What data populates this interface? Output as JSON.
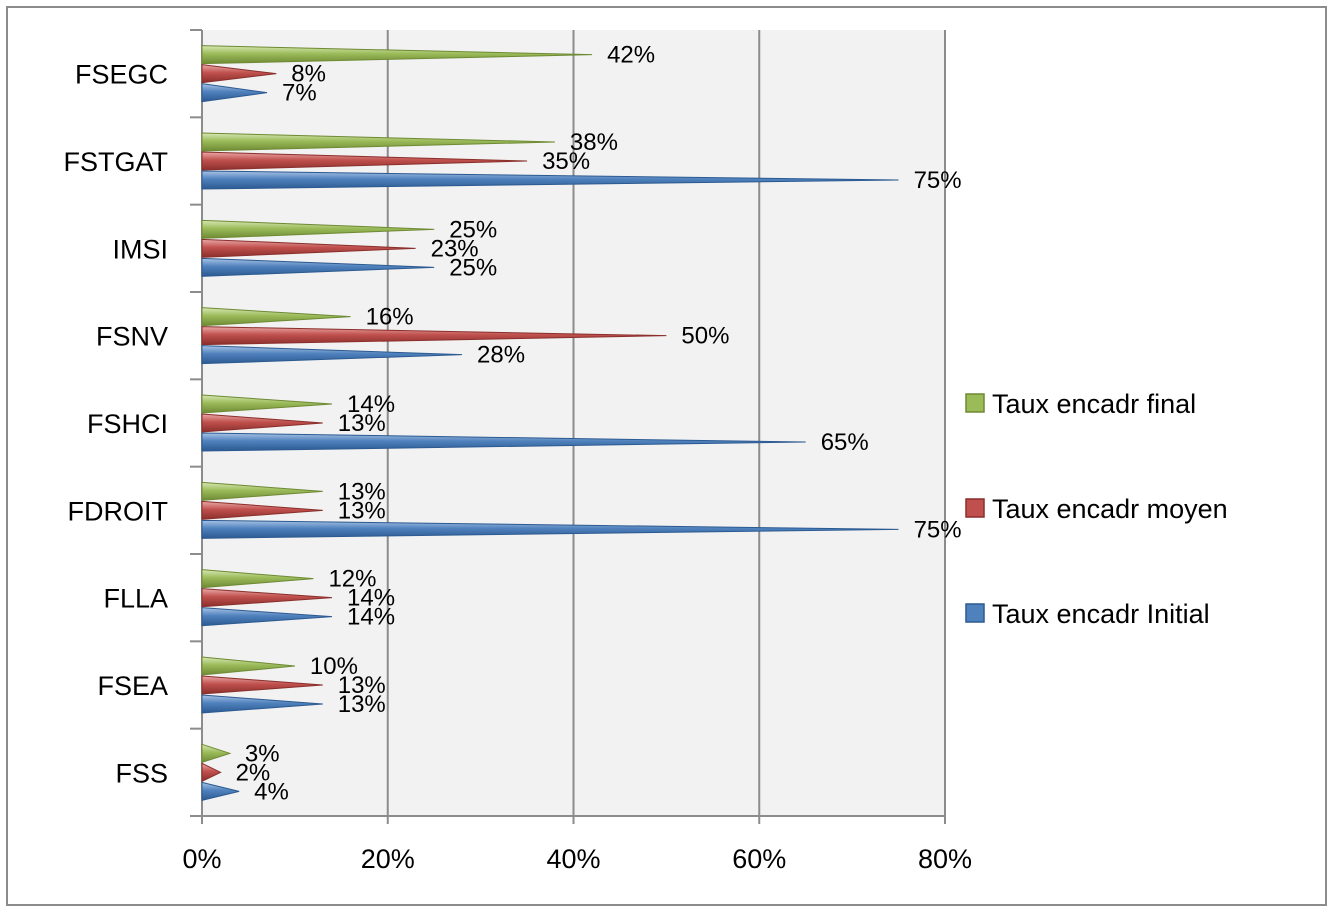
{
  "chart_data": {
    "type": "bar",
    "orientation": "horizontal",
    "bar_shape": "cone",
    "categories": [
      "FSEGC",
      "FSTGAT",
      "IMSI",
      "FSNV",
      "FSHCI",
      "FDROIT",
      "FLLA",
      "FSEA",
      "FSS"
    ],
    "series": [
      {
        "name": "Taux encadr final",
        "color": "#9bbb59",
        "values": [
          42,
          38,
          25,
          16,
          14,
          13,
          12,
          10,
          3
        ],
        "labels": [
          "42%",
          "38%",
          "25%",
          "16%",
          "14%",
          "13%",
          "12%",
          "10%",
          "3%"
        ]
      },
      {
        "name": "Taux encadr moyen",
        "color": "#c0504d",
        "values": [
          8,
          35,
          23,
          50,
          13,
          13,
          14,
          13,
          2
        ],
        "labels": [
          "8%",
          "35%",
          "23%",
          "50%",
          "13%",
          "13%",
          "14%",
          "13%",
          "2%"
        ]
      },
      {
        "name": "Taux encadr Initial",
        "color": "#4f81bd",
        "values": [
          7,
          75,
          25,
          28,
          65,
          75,
          14,
          13,
          4
        ],
        "labels": [
          "7%",
          "75%",
          "25%",
          "28%",
          "65%",
          "75%",
          "14%",
          "13%",
          "4%"
        ]
      }
    ],
    "xticks": [
      "0%",
      "20%",
      "40%",
      "60%",
      "80%"
    ],
    "xlim": [
      0,
      80
    ],
    "grid": true,
    "legend_position": "right"
  }
}
